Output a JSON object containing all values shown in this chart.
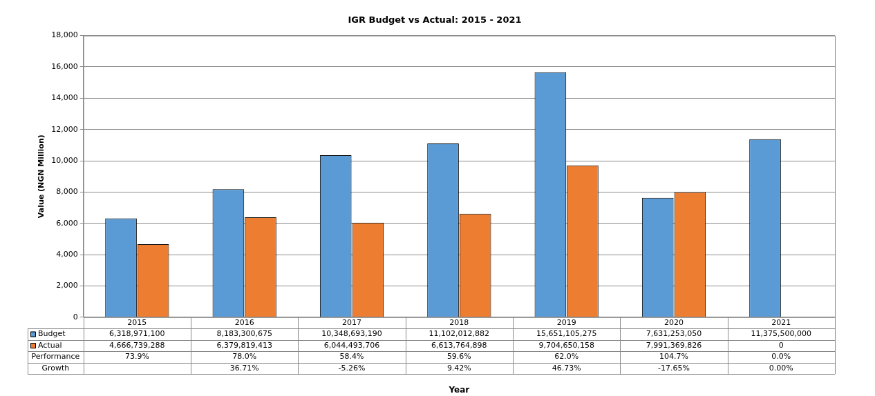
{
  "chart_data": {
    "type": "bar",
    "title": "IGR Budget vs Actual: 2015 - 2021",
    "ylabel": "Value (NGN Million)",
    "categories": [
      "2015",
      "2016",
      "2017",
      "2018",
      "2019",
      "2020",
      "2021"
    ],
    "series": [
      {
        "name": "Budget",
        "color": "#5b9bd5",
        "values": [
          6319,
          8183,
          10349,
          11102,
          15651,
          7631,
          11375
        ]
      },
      {
        "name": "Actual",
        "color": "#ed7d31",
        "values": [
          4667,
          6380,
          6044,
          6614,
          9705,
          7991,
          0
        ]
      }
    ],
    "ylim": [
      0,
      18000
    ],
    "yticks": [
      0,
      {
        "value": 2000,
        "label": "2,000"
      },
      {
        "value": 4000,
        "label": "4,000"
      },
      {
        "value": 6000,
        "label": "6,000"
      },
      {
        "value": 8000,
        "label": "8,000"
      },
      {
        "value": 10000,
        "label": "10,000"
      },
      {
        "value": 12000,
        "label": "12,000"
      },
      {
        "value": 14000,
        "label": "14,000"
      },
      {
        "value": 16000,
        "label": "16,000"
      },
      {
        "value": 18000,
        "label": "18,000"
      }
    ],
    "grid": "y",
    "legend": "bottom",
    "annotations": [
      "Year",
      "6,318,971,100",
      "8,183,300,675",
      "10,348,693,190",
      "11,102,012,882",
      "15,651,105,275",
      "7,631,253,050",
      "11,375,500,000",
      "4,666,739,288",
      "6,379,819,413",
      "6,044,493,706",
      "6,613,764,898",
      "9,704,650,158",
      "7,991,369,826",
      "0",
      "Performance",
      "73.9%",
      "78.0%",
      "58.4%",
      "59.6%",
      "62.0%",
      "104.7%",
      "0.0%",
      "Growth",
      "36.71%",
      "-5.26%",
      "9.42%",
      "46.73%",
      "-17.65%",
      "0.00%"
    ]
  }
}
